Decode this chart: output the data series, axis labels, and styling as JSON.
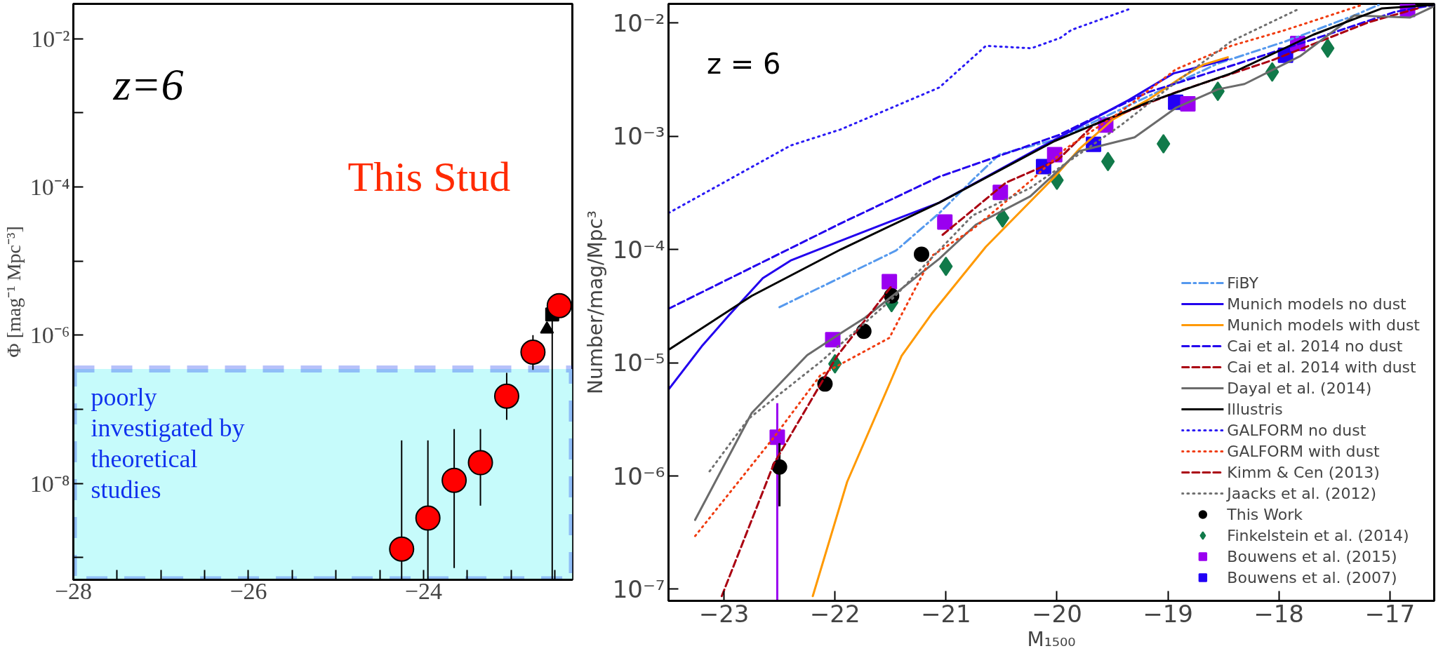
{
  "chart_data": [
    {
      "type": "scatter",
      "xlim": [
        -28,
        -22.3
      ],
      "ylim": [
        5e-10,
        0.0295
      ],
      "log": "y",
      "ylabel": "Φ [mag⁻¹ Mpc⁻³]",
      "xticks": [
        -28,
        {
          "value": -27.5,
          "label": null
        },
        {
          "value": -27,
          "label": null
        },
        {
          "value": -26.5,
          "label": null
        },
        -26,
        {
          "value": -25.5,
          "label": null
        },
        {
          "value": -25,
          "label": null
        },
        {
          "value": -24.5,
          "label": null
        },
        -24,
        {
          "value": -23.5,
          "label": null
        },
        {
          "value": -23,
          "label": null
        },
        {
          "value": -22.5,
          "label": null
        }
      ],
      "yticks": [
        {
          "value": 1e-09,
          "label": null
        },
        {
          "value": 1e-08,
          "label": "10⁻⁸"
        },
        {
          "value": 1e-07,
          "label": null
        },
        {
          "value": 1e-06,
          "label": "10⁻⁶"
        },
        {
          "value": 1e-05,
          "label": null
        },
        {
          "value": 0.0001,
          "label": "10⁻⁴"
        },
        {
          "value": 0.001,
          "label": null
        },
        {
          "value": 0.01,
          "label": "10⁻²"
        }
      ],
      "annotations": [
        "z=6",
        "This Stud"
      ],
      "bands": [
        {
          "axis": "y",
          "from": 5e-10,
          "to": 3.5e-07,
          "label": "poorly investigated by theoretical studies",
          "color": "#c6fbfb"
        }
      ],
      "series": [
        {
          "marker": "circle",
          "color": "#ff0000",
          "x": [
            -24.25,
            -23.95,
            -23.65,
            -23.35,
            -23.05,
            -22.75,
            -22.45
          ],
          "values": [
            1.3e-09,
            3.4e-09,
            1.1e-08,
            1.9e-08,
            1.5e-07,
            5.9e-07,
            2.5e-06
          ],
          "errors": [
            [
              5e-10,
              3.8e-08
            ],
            [
              5e-10,
              3.8e-08
            ],
            [
              7.2e-10,
              5.4e-08
            ],
            [
              5e-09,
              5.4e-08
            ],
            [
              7.2e-08,
              3.1e-07
            ],
            [
              3.4e-07,
              1e-06
            ],
            null
          ]
        },
        {
          "marker": "triangle",
          "color": "#000000",
          "x": [
            -22.59
          ],
          "values": [
            1.2e-06
          ]
        },
        {
          "marker": "square",
          "color": "#000000",
          "x": [
            -22.53
          ],
          "values": [
            1.9e-06
          ],
          "errors": [
            [
              5e-10,
              2.2e-06
            ]
          ]
        }
      ]
    },
    {
      "type": "line",
      "xlim": [
        -23.5,
        -16.6
      ],
      "ylim": [
        7.9e-08,
        0.0148
      ],
      "log": "y",
      "xlabel": "M₁₅₀₀",
      "ylabel": "Number/mag/Mpc³",
      "legend": "bottom right",
      "xticks": [
        -23,
        -22,
        -21,
        -20,
        -19,
        -18,
        -17
      ],
      "yticks": [
        {
          "value": 1e-07,
          "label": "10⁻⁷"
        },
        {
          "value": 1e-06,
          "label": "10⁻⁶"
        },
        {
          "value": 1e-05,
          "label": "10⁻⁵"
        },
        {
          "value": 0.0001,
          "label": "10⁻⁴"
        },
        {
          "value": 0.001,
          "label": "10⁻³"
        },
        {
          "value": 0.01,
          "label": "10⁻²"
        }
      ],
      "annotations": [
        "z = 6"
      ],
      "series": [
        {
          "name": "FiBY",
          "type": "line",
          "line_style": "dashdot",
          "color": "#5599ee",
          "x": [
            -22.5,
            -21.45,
            -21.06,
            -20.73,
            -20.52,
            -19.99,
            -18.55,
            -17.94,
            -17.32,
            -17.1
          ],
          "values": [
            3.1e-05,
            9.8e-05,
            0.00021,
            0.00044,
            0.00069,
            0.00095,
            0.0044,
            0.0069,
            0.0117,
            0.0145
          ]
        },
        {
          "name": "Munich models no dust",
          "type": "line",
          "line_style": "solid",
          "color": "#2200ee",
          "x": [
            -23.5,
            -23.2,
            -22.96,
            -22.65,
            -22.4,
            -21.89,
            -21.06,
            -20.17,
            -19.35,
            -18.95,
            -18.68,
            -18.46
          ],
          "values": [
            5.8e-06,
            1.4e-05,
            2.6e-05,
            5.6e-05,
            8e-05,
            0.000126,
            0.00026,
            0.00078,
            0.0021,
            0.0036,
            0.0042,
            0.0048
          ]
        },
        {
          "name": "Munich models with dust",
          "type": "line",
          "line_style": "solid",
          "color": "#ff9900",
          "x": [
            -22.2,
            -21.89,
            -21.4,
            -21.13,
            -20.64,
            -20.02,
            -19.8,
            -19.5,
            -19.18,
            -18.88,
            -18.68,
            -18.46
          ],
          "values": [
            8.7e-08,
            8.9e-07,
            1.15e-05,
            2.7e-05,
            0.000106,
            0.00044,
            0.00077,
            0.0014,
            0.0021,
            0.0033,
            0.0043,
            0.005
          ]
        },
        {
          "name": "Cai et al. 2014 no dust",
          "type": "line",
          "line_style": "dashed",
          "color": "#2200ee",
          "x": [
            -23.5,
            -21.95,
            -21.06,
            -19.99,
            -19.67,
            -19.18,
            -18.43,
            -17.69,
            -16.95,
            -16.6
          ],
          "values": [
            3e-05,
            0.00017,
            0.00044,
            0.00102,
            0.00145,
            0.00245,
            0.0042,
            0.0072,
            0.0126,
            0.0145
          ]
        },
        {
          "name": "Cai et al. 2014 with dust",
          "type": "line",
          "line_style": "dashed",
          "color": "#aa0011",
          "x": [
            -21.03,
            -20.46,
            -19.99,
            -19.67,
            -18.93,
            -18.06,
            -17.19,
            -16.75
          ],
          "values": [
            0.000135,
            0.00039,
            0.00062,
            0.00126,
            0.00245,
            0.0047,
            0.0102,
            0.0135
          ]
        },
        {
          "name": "Dayal et al. (2014)",
          "type": "line",
          "line_style": "solid",
          "color": "#6b6b6b",
          "x": [
            -23.26,
            -22.75,
            -22.25,
            -21.98,
            -21.73,
            -21.06,
            -20.73,
            -20.24,
            -19.8,
            -19.3,
            -18.93,
            -18.55,
            -18.31,
            -17.81,
            -17.32,
            -16.82,
            -16.6
          ],
          "values": [
            4.1e-07,
            3.6e-06,
            1.17e-05,
            1.74e-05,
            2.5e-05,
            8.3e-05,
            0.000166,
            0.000295,
            0.00074,
            0.00098,
            0.00178,
            0.0026,
            0.0029,
            0.0051,
            0.0117,
            0.0112,
            0.0141
          ]
        },
        {
          "name": "Illustris",
          "type": "line",
          "line_style": "solid",
          "color": "#000000",
          "x": [
            -23.5,
            -22.75,
            -21.95,
            -21.06,
            -20.02,
            -19.18,
            -18.43,
            -17.69,
            -17.07,
            -16.6
          ],
          "values": [
            1.3e-05,
            3.9e-05,
            0.0001,
            0.00026,
            0.00091,
            0.002,
            0.0036,
            0.0079,
            0.0135,
            0.0145
          ]
        },
        {
          "name": "GALFORM no dust",
          "type": "line",
          "line_style": "dotted",
          "color": "#2a1af5",
          "x": [
            -23.5,
            -22.4,
            -21.95,
            -21.06,
            -20.64,
            -20.23,
            -19.97,
            -19.87,
            -19.33
          ],
          "values": [
            0.00021,
            0.00083,
            0.00115,
            0.0027,
            0.0063,
            0.006,
            0.0074,
            0.0087,
            0.0135
          ]
        },
        {
          "name": "GALFORM with dust",
          "type": "line",
          "line_style": "dotted",
          "color": "#f03c10",
          "x": [
            -23.26,
            -22.55,
            -22.13,
            -21.51,
            -21.12,
            -20.76,
            -20.23,
            -19.92,
            -19.42,
            -18.93,
            -18.43,
            -17.94,
            -17.25
          ],
          "values": [
            2.95e-07,
            2.2e-06,
            7.8e-06,
            1.66e-05,
            8.9e-05,
            0.000151,
            0.00041,
            0.00078,
            0.00166,
            0.0039,
            0.0063,
            0.0087,
            0.0145
          ]
        },
        {
          "name": "Kimm & Cen (2013)",
          "type": "line",
          "line_style": "dashed",
          "color": "#aa0011",
          "x": [
            -23.02,
            -22.55,
            -21.98,
            -21.48
          ],
          "values": [
            8.7e-08,
            1.29e-06,
            1.15e-05,
            4.9e-05
          ]
        },
        {
          "name": "Jaacks et al. (2012)",
          "type": "line",
          "line_style": "dotted",
          "color": "#707070",
          "x": [
            -23.13,
            -22.78,
            -22.13,
            -21.48,
            -20.76,
            -20.24,
            -19.42,
            -18.93,
            -18.43,
            -17.81
          ],
          "values": [
            1.1e-06,
            3.2e-06,
            1.02e-05,
            3.7e-05,
            0.0002,
            0.00035,
            0.00126,
            0.003,
            0.0069,
            0.0135
          ]
        },
        {
          "name": "This Work",
          "type": "scatter",
          "marker": "circle",
          "color": "#000000",
          "x": [
            -22.5,
            -22.09,
            -21.74,
            -21.49,
            -21.22
          ],
          "values": [
            1.2e-06,
            6.5e-06,
            1.9e-05,
            3.9e-05,
            9.1e-05
          ],
          "errors": [
            [
              5.4e-07,
              1.95e-06
            ],
            null,
            null,
            null,
            null
          ]
        },
        {
          "name": "Finkelstein et al. (2014)",
          "type": "scatter",
          "marker": "diamond",
          "color": "#117a4a",
          "x": [
            -22.0,
            -21.49,
            -21.0,
            -20.49,
            -20.0,
            -19.54,
            -19.04,
            -18.55,
            -18.06,
            -17.56
          ],
          "values": [
            9.8e-06,
            3.4e-05,
            7.1e-05,
            0.00019,
            0.00041,
            0.0006,
            0.00086,
            0.0025,
            0.0037,
            0.006
          ]
        },
        {
          "name": "Bouwens et al. (2015)",
          "type": "scatter",
          "marker": "square",
          "color": "#9a00f0",
          "x": [
            -22.52,
            -22.02,
            -21.51,
            -21.01,
            -20.51,
            -20.02,
            -19.56,
            -18.82,
            -17.83,
            -16.84
          ],
          "values": [
            2.2e-06,
            1.6e-05,
            5.2e-05,
            0.000175,
            0.00032,
            0.00069,
            0.00126,
            0.00194,
            0.0066,
            0.0132
          ],
          "errors": [
            [
              7.9e-08,
              4.4e-06
            ],
            null,
            null,
            null,
            null,
            null,
            null,
            null,
            null,
            null
          ]
        },
        {
          "name": "Bouwens et al. (2007)",
          "type": "scatter",
          "marker": "square",
          "color": "#2200f5",
          "x": [
            -20.12,
            -19.67,
            -18.93,
            -17.94
          ],
          "values": [
            0.00054,
            0.00085,
            0.002,
            0.0052
          ]
        }
      ]
    }
  ]
}
